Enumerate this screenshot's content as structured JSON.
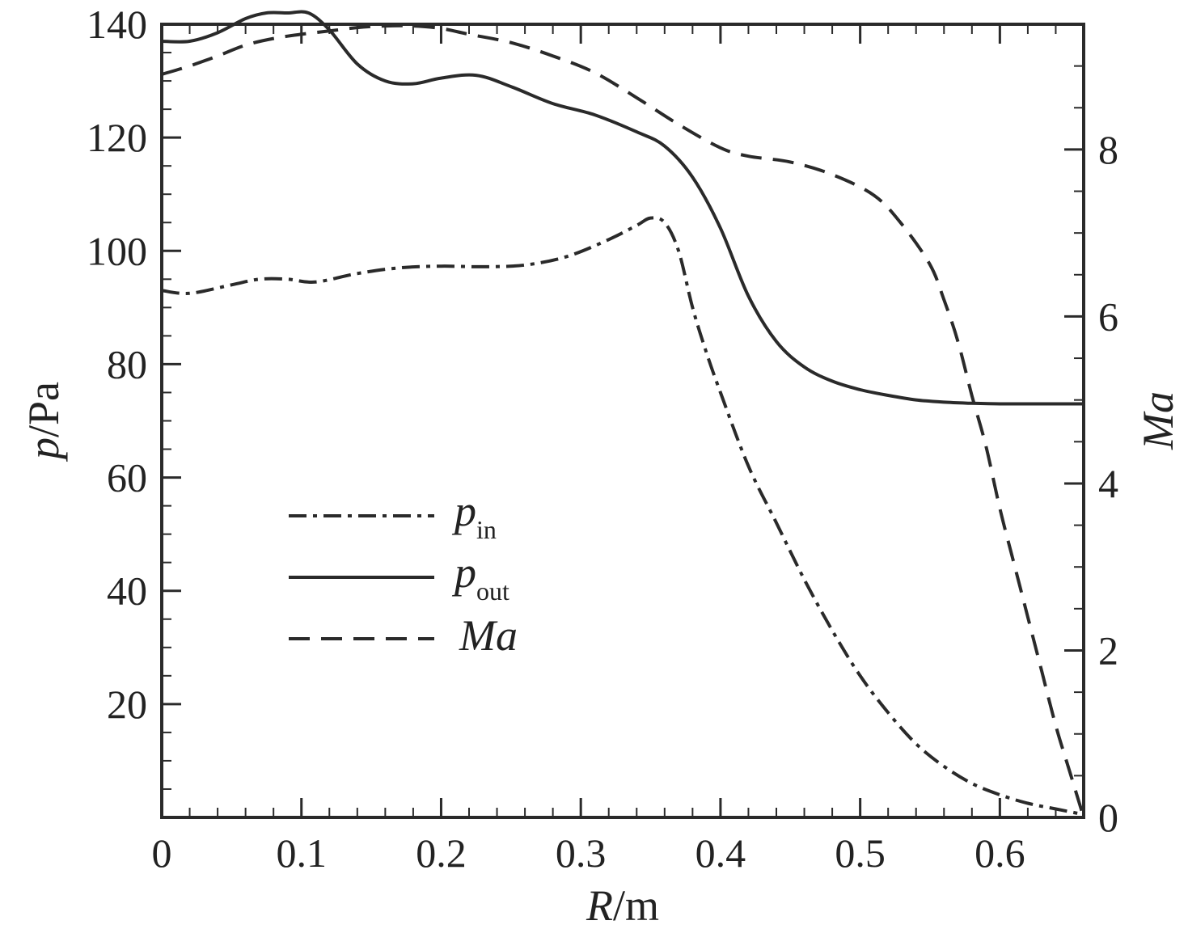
{
  "chart_data": {
    "type": "line",
    "x_axis": {
      "label_italic": "R",
      "label_unit": "/m",
      "range": [
        0,
        0.66
      ],
      "ticks": [
        0,
        0.1,
        0.2,
        0.3,
        0.4,
        0.5,
        0.6
      ],
      "tick_labels": [
        "0",
        "0.1",
        "0.2",
        "0.3",
        "0.4",
        "0.5",
        "0.6"
      ]
    },
    "y_axis_left": {
      "label_italic": "p",
      "label_unit": "/Pa",
      "range": [
        0,
        140
      ],
      "ticks": [
        20,
        40,
        60,
        80,
        100,
        120,
        140
      ],
      "tick_labels": [
        "20",
        "40",
        "60",
        "80",
        "100",
        "120",
        "140"
      ]
    },
    "y_axis_right": {
      "label_italic": "Ma",
      "range": [
        0,
        9.5
      ],
      "ticks": [
        0,
        2,
        4,
        6,
        8
      ],
      "tick_labels": [
        "0",
        "2",
        "4",
        "6",
        "8"
      ]
    },
    "grid": false,
    "legend_position": "center-left",
    "series": [
      {
        "name": "p_in",
        "legend_main": "p",
        "legend_sub": "in",
        "axis": "left",
        "style": "dash-dot",
        "x": [
          0,
          0.02,
          0.05,
          0.07,
          0.09,
          0.11,
          0.14,
          0.17,
          0.2,
          0.23,
          0.26,
          0.29,
          0.32,
          0.34,
          0.35,
          0.36,
          0.37,
          0.38,
          0.39,
          0.4,
          0.42,
          0.44,
          0.46,
          0.48,
          0.5,
          0.52,
          0.54,
          0.56,
          0.58,
          0.6,
          0.62,
          0.64,
          0.66
        ],
        "y": [
          93,
          92.5,
          94,
          95,
          95,
          94.5,
          96,
          97,
          97.3,
          97.2,
          97.5,
          99,
          102,
          104.5,
          105.8,
          105,
          100,
          90,
          82,
          75,
          62,
          52,
          42,
          33,
          25,
          18.5,
          13,
          9,
          6,
          4,
          2.5,
          1.5,
          0.5
        ]
      },
      {
        "name": "p_out",
        "legend_main": "p",
        "legend_sub": "out",
        "axis": "left",
        "style": "solid",
        "x": [
          0,
          0.02,
          0.04,
          0.06,
          0.075,
          0.09,
          0.105,
          0.12,
          0.14,
          0.16,
          0.18,
          0.2,
          0.225,
          0.25,
          0.28,
          0.31,
          0.34,
          0.36,
          0.38,
          0.4,
          0.42,
          0.44,
          0.46,
          0.48,
          0.5,
          0.52,
          0.54,
          0.56,
          0.58,
          0.6,
          0.62,
          0.64,
          0.66
        ],
        "y": [
          137,
          137,
          138.5,
          141,
          142,
          142,
          142,
          139,
          133,
          130,
          129.5,
          130.5,
          131,
          129,
          126,
          124,
          121,
          118.5,
          113,
          104,
          92,
          84,
          79.5,
          77,
          75.5,
          74.5,
          73.7,
          73.3,
          73.1,
          73,
          73,
          73,
          73
        ]
      },
      {
        "name": "Ma",
        "legend_main": "Ma",
        "legend_sub": "",
        "axis": "right",
        "style": "dashed",
        "x": [
          0,
          0.02,
          0.04,
          0.06,
          0.08,
          0.1,
          0.12,
          0.14,
          0.16,
          0.18,
          0.2,
          0.22,
          0.25,
          0.28,
          0.31,
          0.34,
          0.37,
          0.4,
          0.42,
          0.45,
          0.48,
          0.51,
          0.53,
          0.55,
          0.56,
          0.57,
          0.58,
          0.59,
          0.6,
          0.61,
          0.62,
          0.63,
          0.64,
          0.65,
          0.66
        ],
        "y": [
          8.9,
          9.0,
          9.12,
          9.25,
          9.33,
          9.38,
          9.42,
          9.46,
          9.48,
          9.48,
          9.45,
          9.38,
          9.28,
          9.12,
          8.92,
          8.62,
          8.3,
          8.02,
          7.92,
          7.85,
          7.7,
          7.45,
          7.1,
          6.62,
          6.2,
          5.7,
          5.05,
          4.45,
          3.7,
          3.05,
          2.4,
          1.75,
          1.1,
          0.55,
          0
        ]
      }
    ]
  }
}
